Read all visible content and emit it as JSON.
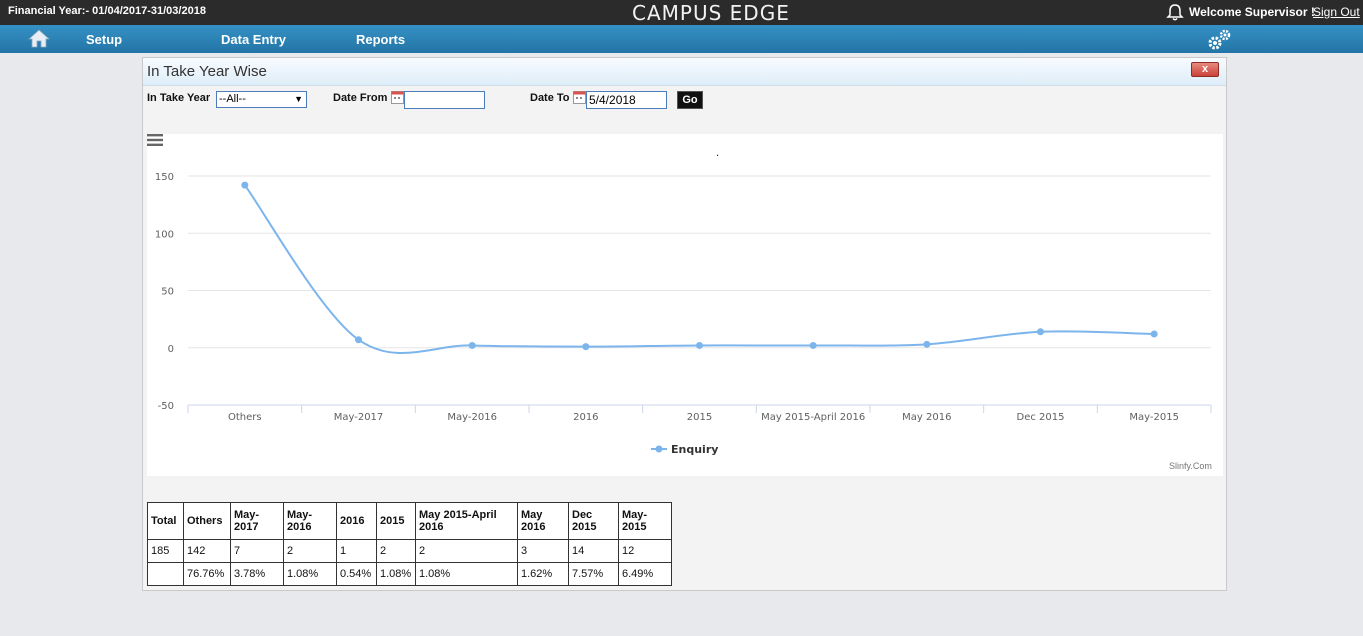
{
  "header": {
    "financial_year": "Financial Year:- 01/04/2017-31/03/2018",
    "logo": "CAMPUS EDGE",
    "welcome": "Welcome Supervisor !",
    "sign_out": "Sign Out"
  },
  "nav": {
    "items": [
      "Setup",
      "Data Entry",
      "Reports"
    ]
  },
  "panel": {
    "title": "In Take Year Wise",
    "close_label": "x"
  },
  "filters": {
    "intake_year_label": "In Take Year",
    "intake_year_value": "--All--",
    "date_from_label": "Date From",
    "date_from_value": "",
    "date_to_label": "Date To",
    "date_to_value": "5/4/2018",
    "go_label": "Go"
  },
  "chart_data": {
    "type": "line",
    "title": ".",
    "categories": [
      "Others",
      "May-2017",
      "May-2016",
      "2016",
      "2015",
      "May 2015-April 2016",
      "May 2016",
      "Dec 2015",
      "May-2015"
    ],
    "series": [
      {
        "name": "Enquiry",
        "values": [
          142,
          7,
          2,
          1,
          2,
          2,
          3,
          14,
          12
        ]
      }
    ],
    "ylim": [
      -50,
      150
    ],
    "yticks": [
      -50,
      0,
      50,
      100,
      150
    ],
    "grid": true,
    "legend": "bottom-center",
    "credit": "Slinfy.Com",
    "color": "#7cb5ec"
  },
  "table": {
    "headers": [
      "Total",
      "Others",
      "May-2017",
      "May-2016",
      "2016",
      "2015",
      "May 2015-April 2016",
      "May 2016",
      "Dec 2015",
      "May-2015"
    ],
    "counts": [
      "185",
      "142",
      "7",
      "2",
      "1",
      "2",
      "2",
      "3",
      "14",
      "12"
    ],
    "percents": [
      "",
      "76.76%",
      "3.78%",
      "1.08%",
      "0.54%",
      "1.08%",
      "1.08%",
      "1.62%",
      "7.57%",
      "6.49%"
    ]
  }
}
